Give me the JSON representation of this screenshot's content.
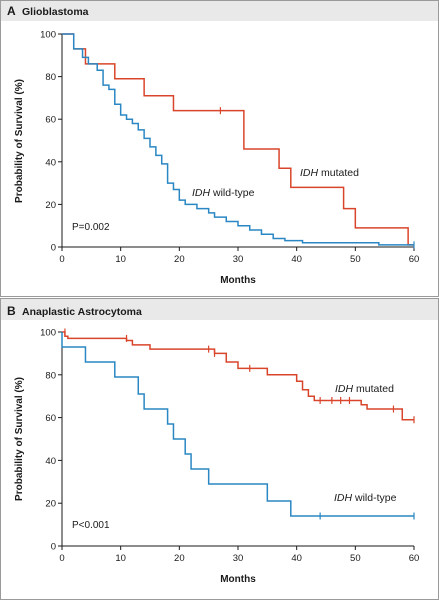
{
  "colors": {
    "mutated": "#d9452b",
    "wildtype": "#2a87c3",
    "header_bg": "#e9e9e9"
  },
  "chart_data": [
    {
      "type": "line",
      "panel_letter": "A",
      "title": "Glioblastoma",
      "xlabel": "Months",
      "ylabel": "Probability of Survival (%)",
      "xlim": [
        0,
        60
      ],
      "ylim": [
        0,
        100
      ],
      "xticks": [
        0,
        10,
        20,
        30,
        40,
        50,
        60
      ],
      "yticks": [
        0,
        20,
        40,
        60,
        80,
        100
      ],
      "grid": false,
      "annotation": "P=0.002",
      "series": [
        {
          "name_prefix": "IDH",
          "name_suffix": " mutated",
          "color_key": "mutated",
          "steps": [
            [
              0,
              100
            ],
            [
              2,
              100
            ],
            [
              2,
              93
            ],
            [
              4,
              93
            ],
            [
              4,
              86
            ],
            [
              9,
              86
            ],
            [
              9,
              79
            ],
            [
              14,
              79
            ],
            [
              14,
              71
            ],
            [
              19,
              71
            ],
            [
              19,
              64
            ],
            [
              31,
              64
            ],
            [
              31,
              46
            ],
            [
              37,
              46
            ],
            [
              37,
              37
            ],
            [
              39,
              37
            ],
            [
              39,
              28
            ],
            [
              48,
              28
            ],
            [
              48,
              18
            ],
            [
              50,
              18
            ],
            [
              50,
              9
            ],
            [
              59,
              9
            ],
            [
              59,
              1
            ],
            [
              60,
              1
            ]
          ],
          "censored": [
            [
              27,
              64
            ]
          ]
        },
        {
          "name_prefix": "IDH",
          "name_suffix": " wild-type",
          "color_key": "wildtype",
          "steps": [
            [
              0,
              100
            ],
            [
              2,
              100
            ],
            [
              2,
              93
            ],
            [
              3.5,
              93
            ],
            [
              3.5,
              89
            ],
            [
              4.5,
              89
            ],
            [
              4.5,
              86
            ],
            [
              6,
              86
            ],
            [
              6,
              83
            ],
            [
              7,
              83
            ],
            [
              7,
              76
            ],
            [
              8,
              76
            ],
            [
              8,
              74
            ],
            [
              9,
              74
            ],
            [
              9,
              67
            ],
            [
              10,
              67
            ],
            [
              10,
              62
            ],
            [
              11,
              62
            ],
            [
              11,
              60
            ],
            [
              12,
              60
            ],
            [
              12,
              58
            ],
            [
              13,
              58
            ],
            [
              13,
              55
            ],
            [
              14,
              55
            ],
            [
              14,
              51
            ],
            [
              15,
              51
            ],
            [
              15,
              47
            ],
            [
              16,
              47
            ],
            [
              16,
              43
            ],
            [
              17,
              43
            ],
            [
              17,
              39
            ],
            [
              18,
              39
            ],
            [
              18,
              30
            ],
            [
              19,
              30
            ],
            [
              19,
              27
            ],
            [
              20,
              27
            ],
            [
              20,
              22
            ],
            [
              21,
              22
            ],
            [
              21,
              20
            ],
            [
              23,
              20
            ],
            [
              23,
              18
            ],
            [
              25,
              18
            ],
            [
              25,
              16
            ],
            [
              26,
              16
            ],
            [
              26,
              14
            ],
            [
              28,
              14
            ],
            [
              28,
              12
            ],
            [
              30,
              12
            ],
            [
              30,
              10
            ],
            [
              32,
              10
            ],
            [
              32,
              8
            ],
            [
              34,
              8
            ],
            [
              34,
              6
            ],
            [
              36,
              6
            ],
            [
              36,
              4
            ],
            [
              38,
              4
            ],
            [
              38,
              3
            ],
            [
              41,
              3
            ],
            [
              41,
              2
            ],
            [
              54,
              2
            ],
            [
              54,
              1
            ],
            [
              60,
              1
            ]
          ],
          "censored": [
            [
              60,
              1
            ]
          ]
        }
      ]
    },
    {
      "type": "line",
      "panel_letter": "B",
      "title": "Anaplastic Astrocytoma",
      "xlabel": "Months",
      "ylabel": "Probability of Survival (%)",
      "xlim": [
        0,
        60
      ],
      "ylim": [
        0,
        100
      ],
      "xticks": [
        0,
        10,
        20,
        30,
        40,
        50,
        60
      ],
      "yticks": [
        0,
        20,
        40,
        60,
        80,
        100
      ],
      "grid": false,
      "annotation": "P<0.001",
      "series": [
        {
          "name_prefix": "IDH",
          "name_suffix": " mutated",
          "color_key": "mutated",
          "steps": [
            [
              0,
              100
            ],
            [
              0.5,
              100
            ],
            [
              0.5,
              98
            ],
            [
              1,
              98
            ],
            [
              1,
              97
            ],
            [
              11,
              97
            ],
            [
              11,
              96
            ],
            [
              12,
              96
            ],
            [
              12,
              94
            ],
            [
              15,
              94
            ],
            [
              15,
              92
            ],
            [
              26,
              92
            ],
            [
              26,
              90
            ],
            [
              28,
              90
            ],
            [
              28,
              86
            ],
            [
              30,
              86
            ],
            [
              30,
              83
            ],
            [
              35,
              83
            ],
            [
              35,
              80
            ],
            [
              40,
              80
            ],
            [
              40,
              77
            ],
            [
              41,
              77
            ],
            [
              41,
              73
            ],
            [
              42,
              73
            ],
            [
              42,
              70
            ],
            [
              43,
              70
            ],
            [
              43,
              68
            ],
            [
              51,
              68
            ],
            [
              51,
              66
            ],
            [
              52,
              66
            ],
            [
              52,
              64
            ],
            [
              58,
              64
            ],
            [
              58,
              59
            ],
            [
              60,
              59
            ]
          ],
          "censored": [
            [
              0.5,
              100
            ],
            [
              11,
              97
            ],
            [
              25,
              92
            ],
            [
              26,
              90
            ],
            [
              32,
              83
            ],
            [
              44,
              68
            ],
            [
              46,
              68
            ],
            [
              47.5,
              68
            ],
            [
              49,
              68
            ],
            [
              56.5,
              64
            ],
            [
              60,
              59
            ]
          ]
        },
        {
          "name_prefix": "IDH",
          "name_suffix": " wild-type",
          "color_key": "wildtype",
          "steps": [
            [
              0,
              100
            ],
            [
              0,
              93
            ],
            [
              4,
              93
            ],
            [
              4,
              86
            ],
            [
              9,
              86
            ],
            [
              9,
              79
            ],
            [
              13,
              79
            ],
            [
              13,
              71
            ],
            [
              14,
              71
            ],
            [
              14,
              64
            ],
            [
              18,
              64
            ],
            [
              18,
              57
            ],
            [
              19,
              57
            ],
            [
              19,
              50
            ],
            [
              21,
              50
            ],
            [
              21,
              43
            ],
            [
              22,
              43
            ],
            [
              22,
              36
            ],
            [
              25,
              36
            ],
            [
              25,
              29
            ],
            [
              35,
              29
            ],
            [
              35,
              21
            ],
            [
              39,
              21
            ],
            [
              39,
              14
            ],
            [
              60,
              14
            ]
          ],
          "censored": [
            [
              44,
              14
            ],
            [
              60,
              14
            ]
          ]
        }
      ]
    }
  ]
}
